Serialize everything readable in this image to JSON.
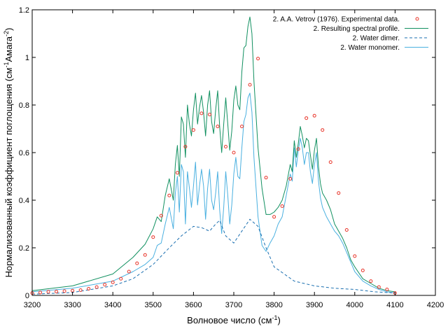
{
  "chart_data": {
    "type": "line",
    "xlabel": {
      "main": "Волновое число (см",
      "sup": "-1",
      "tail": ")"
    },
    "ylabel": {
      "main": "Нормализованный коэффициент поглощения (см",
      "sup1": "-1",
      "mid": "Амага",
      "sup2": "-2",
      "tail": ")"
    },
    "xlim": [
      3200,
      4200
    ],
    "ylim": [
      0,
      1.2
    ],
    "xticks": [
      3200,
      3300,
      3400,
      3500,
      3600,
      3700,
      3800,
      3900,
      4000,
      4100,
      4200
    ],
    "yticks": [
      0,
      0.2,
      0.4,
      0.6,
      0.8,
      1,
      1.2
    ],
    "ytick_labels": [
      "0",
      "0.2",
      "0.4",
      "0.6",
      "0.8",
      "1",
      "1.2"
    ],
    "legend_position": "top-right",
    "colors": {
      "experimental": "#e8352a",
      "total": "#119060",
      "dimer": "#1a6fb0",
      "monomer": "#4ab0e0"
    },
    "series": [
      {
        "name": "2. A.A. Vetrov (1976). Experimental data.",
        "style": "points",
        "x": [
          3200,
          3220,
          3240,
          3260,
          3280,
          3300,
          3320,
          3340,
          3360,
          3380,
          3400,
          3420,
          3440,
          3460,
          3480,
          3500,
          3520,
          3540,
          3560,
          3580,
          3600,
          3620,
          3640,
          3660,
          3680,
          3700,
          3720,
          3740,
          3760,
          3780,
          3800,
          3820,
          3840,
          3860,
          3880,
          3900,
          3920,
          3940,
          3960,
          3980,
          4000,
          4020,
          4040,
          4060,
          4080,
          4100
        ],
        "y": [
          0.01,
          0.012,
          0.015,
          0.016,
          0.018,
          0.02,
          0.022,
          0.028,
          0.035,
          0.045,
          0.055,
          0.07,
          0.1,
          0.135,
          0.17,
          0.245,
          0.335,
          0.42,
          0.515,
          0.625,
          0.695,
          0.765,
          0.76,
          0.71,
          0.625,
          0.6,
          0.71,
          0.885,
          0.995,
          0.495,
          0.33,
          0.375,
          0.49,
          0.615,
          0.745,
          0.755,
          0.695,
          0.56,
          0.43,
          0.275,
          0.165,
          0.105,
          0.06,
          0.035,
          0.025,
          0.01
        ]
      },
      {
        "name": "2. Resulting spectral profile.",
        "style": "line",
        "x": [
          3200,
          3300,
          3400,
          3450,
          3480,
          3500,
          3510,
          3520,
          3530,
          3540,
          3550,
          3555,
          3560,
          3565,
          3570,
          3575,
          3580,
          3585,
          3590,
          3595,
          3600,
          3605,
          3610,
          3615,
          3620,
          3625,
          3630,
          3635,
          3640,
          3645,
          3650,
          3655,
          3660,
          3665,
          3670,
          3675,
          3680,
          3685,
          3690,
          3695,
          3700,
          3705,
          3710,
          3715,
          3720,
          3725,
          3730,
          3735,
          3740,
          3745,
          3750,
          3760,
          3770,
          3780,
          3790,
          3800,
          3810,
          3820,
          3830,
          3840,
          3845,
          3850,
          3855,
          3860,
          3865,
          3870,
          3875,
          3880,
          3885,
          3890,
          3895,
          3900,
          3905,
          3910,
          3915,
          3920,
          3930,
          3940,
          3950,
          3960,
          3970,
          3980,
          3990,
          4000,
          4020,
          4040,
          4060,
          4080,
          4100
        ],
        "y": [
          0.02,
          0.04,
          0.09,
          0.16,
          0.215,
          0.28,
          0.33,
          0.31,
          0.42,
          0.49,
          0.4,
          0.55,
          0.63,
          0.5,
          0.75,
          0.72,
          0.58,
          0.8,
          0.72,
          0.67,
          0.78,
          0.85,
          0.72,
          0.79,
          0.84,
          0.77,
          0.67,
          0.8,
          0.86,
          0.73,
          0.68,
          0.78,
          0.86,
          0.71,
          0.6,
          0.72,
          0.83,
          0.72,
          0.61,
          0.69,
          0.82,
          0.88,
          0.8,
          0.78,
          0.94,
          1.04,
          1.05,
          1.13,
          1.17,
          1.1,
          0.9,
          0.62,
          0.45,
          0.34,
          0.34,
          0.35,
          0.37,
          0.4,
          0.46,
          0.55,
          0.52,
          0.65,
          0.58,
          0.64,
          0.71,
          0.67,
          0.62,
          0.66,
          0.65,
          0.59,
          0.53,
          0.61,
          0.66,
          0.54,
          0.47,
          0.43,
          0.4,
          0.36,
          0.3,
          0.27,
          0.24,
          0.2,
          0.15,
          0.12,
          0.07,
          0.05,
          0.03,
          0.02,
          0.015
        ]
      },
      {
        "name": "2. Water dimer.",
        "style": "dashed",
        "x": [
          3200,
          3300,
          3400,
          3450,
          3500,
          3540,
          3570,
          3600,
          3620,
          3640,
          3655,
          3665,
          3680,
          3700,
          3720,
          3740,
          3760,
          3780,
          3800,
          3850,
          3900,
          3950,
          4000,
          4050,
          4100
        ],
        "y": [
          0.005,
          0.012,
          0.04,
          0.07,
          0.13,
          0.2,
          0.25,
          0.29,
          0.285,
          0.27,
          0.3,
          0.315,
          0.25,
          0.22,
          0.27,
          0.32,
          0.29,
          0.2,
          0.12,
          0.06,
          0.04,
          0.03,
          0.025,
          0.015,
          0.01
        ]
      },
      {
        "name": "2. Water monomer.",
        "style": "line",
        "x": [
          3200,
          3300,
          3400,
          3450,
          3480,
          3500,
          3510,
          3520,
          3530,
          3540,
          3550,
          3555,
          3560,
          3565,
          3570,
          3575,
          3580,
          3585,
          3590,
          3595,
          3600,
          3605,
          3610,
          3615,
          3620,
          3625,
          3630,
          3635,
          3640,
          3645,
          3650,
          3655,
          3660,
          3665,
          3670,
          3675,
          3680,
          3685,
          3690,
          3695,
          3700,
          3705,
          3710,
          3715,
          3720,
          3725,
          3730,
          3735,
          3740,
          3745,
          3750,
          3760,
          3770,
          3780,
          3790,
          3800,
          3810,
          3820,
          3830,
          3840,
          3845,
          3850,
          3855,
          3860,
          3865,
          3870,
          3875,
          3880,
          3885,
          3890,
          3895,
          3900,
          3905,
          3910,
          3915,
          3920,
          3930,
          3940,
          3950,
          3960,
          3970,
          3980,
          3990,
          4000,
          4020,
          4040,
          4060,
          4080,
          4100
        ],
        "y": [
          0.015,
          0.03,
          0.06,
          0.1,
          0.13,
          0.16,
          0.21,
          0.22,
          0.3,
          0.37,
          0.28,
          0.43,
          0.5,
          0.35,
          0.55,
          0.52,
          0.3,
          0.52,
          0.45,
          0.37,
          0.46,
          0.56,
          0.38,
          0.46,
          0.53,
          0.46,
          0.32,
          0.45,
          0.53,
          0.4,
          0.36,
          0.43,
          0.52,
          0.36,
          0.26,
          0.37,
          0.52,
          0.42,
          0.3,
          0.38,
          0.51,
          0.58,
          0.5,
          0.49,
          0.62,
          0.73,
          0.76,
          0.83,
          0.85,
          0.77,
          0.58,
          0.33,
          0.21,
          0.185,
          0.22,
          0.25,
          0.3,
          0.33,
          0.42,
          0.51,
          0.48,
          0.62,
          0.54,
          0.61,
          0.66,
          0.62,
          0.55,
          0.6,
          0.6,
          0.52,
          0.47,
          0.55,
          0.6,
          0.48,
          0.41,
          0.37,
          0.33,
          0.3,
          0.27,
          0.25,
          0.22,
          0.18,
          0.14,
          0.1,
          0.06,
          0.04,
          0.025,
          0.015,
          0.01
        ]
      }
    ]
  }
}
